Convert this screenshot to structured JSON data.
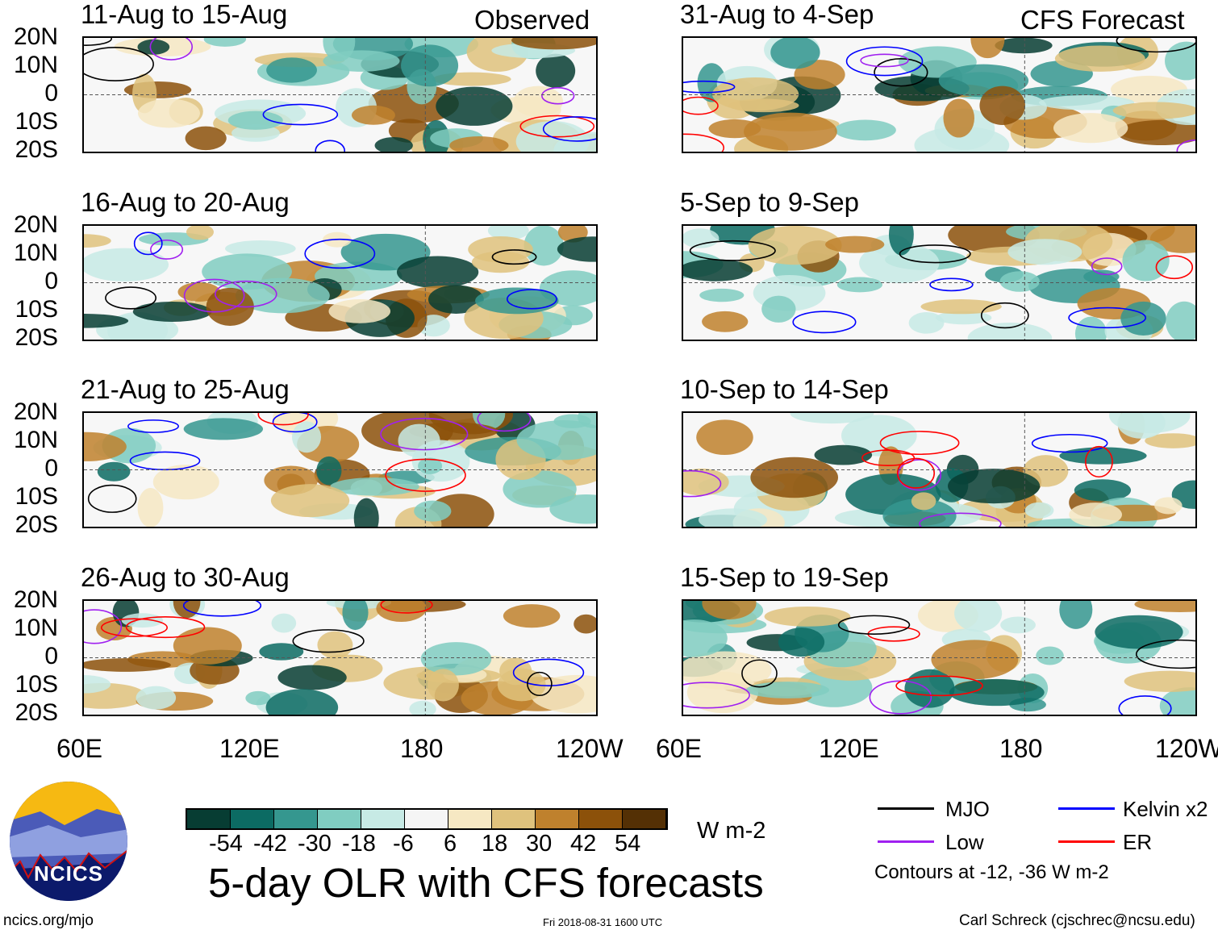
{
  "header": {
    "left_label": "Observed",
    "right_label": "CFS Forecast"
  },
  "panels": {
    "observed": [
      "11-Aug to 15-Aug",
      "16-Aug to 20-Aug",
      "21-Aug to 25-Aug",
      "26-Aug to 30-Aug"
    ],
    "forecast": [
      "31-Aug to 4-Sep",
      "5-Sep to 9-Sep",
      "10-Sep to 14-Sep",
      "15-Sep to 19-Sep"
    ]
  },
  "axes": {
    "lat_ticks": [
      "20N",
      "10N",
      "0",
      "10S",
      "20S"
    ],
    "lon_ticks": [
      "60E",
      "120E",
      "180",
      "120W"
    ]
  },
  "colorbar": {
    "labels": [
      "-54",
      "-42",
      "-30",
      "-18",
      "-6",
      "6",
      "18",
      "30",
      "42",
      "54"
    ],
    "colors": [
      "#073d33",
      "#0c6b63",
      "#35978f",
      "#80cdc1",
      "#c7eae5",
      "#f5f5f5",
      "#f6e8c3",
      "#dfc27d",
      "#bf812d",
      "#8c510a",
      "#543005"
    ],
    "units": "W m-2"
  },
  "title": "5-day OLR with CFS forecasts",
  "legend": {
    "items": [
      {
        "label": "MJO",
        "color": "#000000"
      },
      {
        "label": "Kelvin x2",
        "color": "#0000ff"
      },
      {
        "label": "Low",
        "color": "#a020f0"
      },
      {
        "label": "ER",
        "color": "#ff0000"
      }
    ],
    "note": "Contours at -12, -36 W m-2"
  },
  "footer": {
    "logo_text": "NCICS",
    "url": "ncics.org/mjo",
    "timestamp": "Fri 2018-08-31 1600 UTC",
    "credit": "Carl Schreck (cjschrec@ncsu.edu)"
  }
}
